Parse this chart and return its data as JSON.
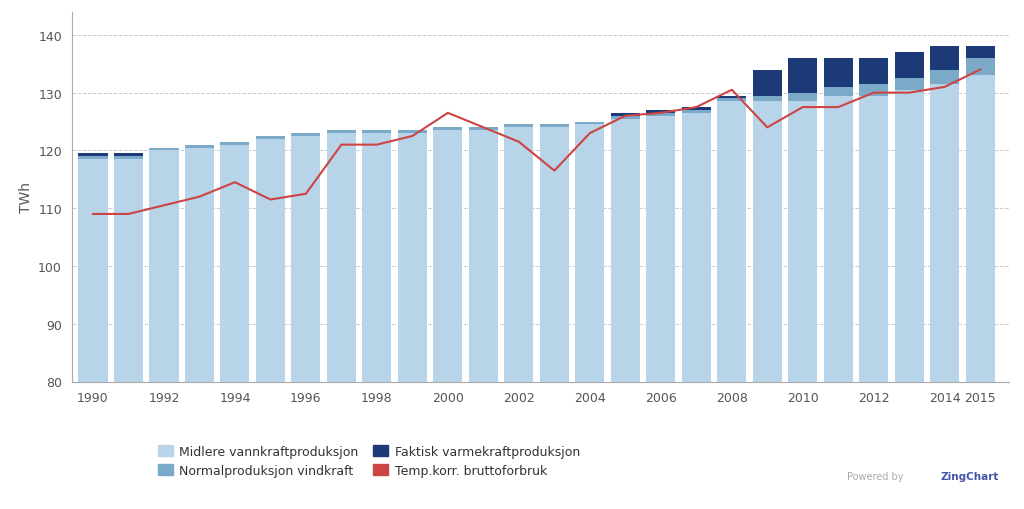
{
  "years": [
    1990,
    1991,
    1992,
    1993,
    1994,
    1995,
    1996,
    1997,
    1998,
    1999,
    2000,
    2001,
    2002,
    2003,
    2004,
    2005,
    2006,
    2007,
    2008,
    2009,
    2010,
    2011,
    2012,
    2013,
    2014,
    2015
  ],
  "vannkraft": [
    118.5,
    118.5,
    120.0,
    120.5,
    121.0,
    122.0,
    122.5,
    123.0,
    123.0,
    123.0,
    123.5,
    123.5,
    124.0,
    124.0,
    124.5,
    125.5,
    126.0,
    126.5,
    128.5,
    128.5,
    128.5,
    129.5,
    129.5,
    130.5,
    131.5,
    133.0
  ],
  "vindkraft": [
    0.5,
    0.5,
    0.5,
    0.5,
    0.5,
    0.5,
    0.5,
    0.5,
    0.5,
    0.5,
    0.5,
    0.5,
    0.5,
    0.5,
    0.5,
    0.5,
    0.5,
    0.5,
    0.5,
    1.0,
    1.5,
    1.5,
    2.0,
    2.0,
    2.5,
    3.0
  ],
  "varmekraft": [
    0.5,
    0.5,
    0.0,
    0.0,
    0.0,
    0.0,
    0.0,
    0.0,
    0.0,
    0.0,
    0.0,
    0.0,
    0.0,
    0.0,
    0.0,
    0.5,
    0.5,
    0.5,
    0.5,
    4.5,
    6.0,
    5.0,
    4.5,
    4.5,
    4.0,
    2.0
  ],
  "bruttoforbruk": [
    109.0,
    109.0,
    110.5,
    112.0,
    114.5,
    111.5,
    112.5,
    121.0,
    121.0,
    122.5,
    126.5,
    124.0,
    121.5,
    116.5,
    123.0,
    126.0,
    126.5,
    127.5,
    130.5,
    124.0,
    127.5,
    127.5,
    130.0,
    130.0,
    131.0,
    134.0
  ],
  "color_vannkraft": "#b8d4e8",
  "color_vindkraft": "#7aaac8",
  "color_varmekraft": "#1c3a78",
  "color_bruttoforbruk": "#cc4444",
  "background_color": "#ffffff",
  "plot_bg_color": "#ffffff",
  "ylim": [
    80,
    144
  ],
  "yticks": [
    80,
    90,
    100,
    110,
    120,
    130,
    140
  ],
  "ylabel": "TWh",
  "xticks": [
    1990,
    1992,
    1994,
    1996,
    1998,
    2000,
    2002,
    2004,
    2006,
    2008,
    2010,
    2012,
    2014,
    2015
  ],
  "legend_labels": [
    "Midlere vannkraftproduksjon",
    "Normalproduksjon vindkraft",
    "Faktisk varmekraftproduksjon",
    "Temp.korr. bruttoforbruk"
  ]
}
